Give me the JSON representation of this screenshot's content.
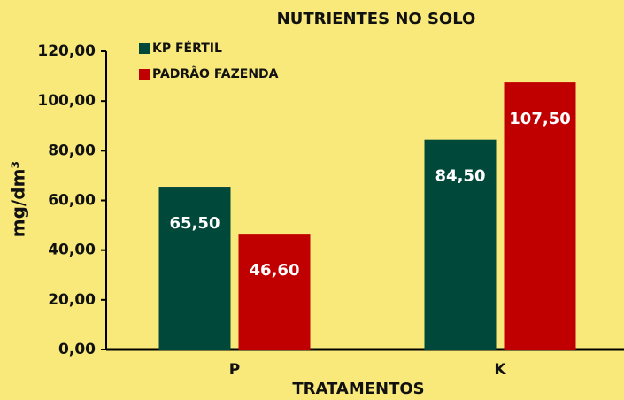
{
  "chart_data": {
    "type": "bar",
    "title": "NUTRIENTES NO SOLO",
    "x_label": "TRATAMENTOS",
    "y_label": "mg/dm³",
    "categories": [
      "P",
      "K"
    ],
    "series": [
      {
        "name": "KP FÉRTIL",
        "color": "#00483a",
        "values": [
          65.5,
          84.5
        ],
        "value_labels": [
          "65,50",
          "84,50"
        ]
      },
      {
        "name": "PADRÃO FAZENDA",
        "color": "#c00000",
        "values": [
          46.6,
          107.5
        ],
        "value_labels": [
          "46,60",
          "107,50"
        ]
      }
    ],
    "ylim": [
      0,
      120
    ],
    "yticks": [
      {
        "value": 0,
        "label": "0,00"
      },
      {
        "value": 20,
        "label": "20,00"
      },
      {
        "value": 40,
        "label": "40,00"
      },
      {
        "value": 60,
        "label": "60,00"
      },
      {
        "value": 80,
        "label": "80,00"
      },
      {
        "value": 100,
        "label": "100,00"
      },
      {
        "value": 120,
        "label": "120,00"
      }
    ],
    "legend": "top-left",
    "grid": false
  }
}
